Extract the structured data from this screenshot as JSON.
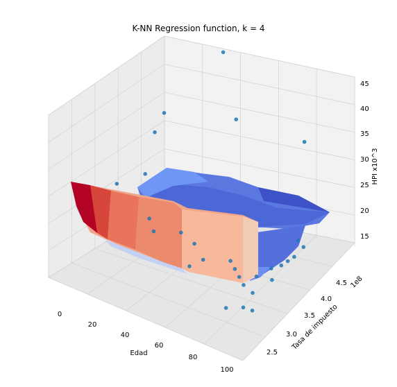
{
  "chart_data": {
    "type": "scatter",
    "title": "K-NN Regression function, k = 4",
    "xlabel": "Edad",
    "ylabel": "Tasa de impuesto",
    "zlabel": "HPI x10^3",
    "y_offset_label": "1e8",
    "xlim": [
      0,
      100
    ],
    "ylim": [
      2.3,
      4.7
    ],
    "zlim": [
      11,
      46
    ],
    "x_ticks": [
      "0",
      "20",
      "40",
      "60",
      "80",
      "100"
    ],
    "y_ticks": [
      "2.5",
      "3.0",
      "3.5",
      "4.0",
      "4.5"
    ],
    "z_ticks": [
      "15",
      "20",
      "25",
      "30",
      "35",
      "40",
      "45"
    ],
    "grid": true,
    "points": [
      {
        "x": 40,
        "y": 4.5,
        "z": 41
      },
      {
        "x": 15,
        "y": 4.2,
        "z": 28
      },
      {
        "x": 15,
        "y": 4.0,
        "z": 26
      },
      {
        "x": 42,
        "y": 4.7,
        "z": 25
      },
      {
        "x": 85,
        "y": 4.5,
        "z": 28
      },
      {
        "x": 12,
        "y": 3.3,
        "z": 22
      },
      {
        "x": 20,
        "y": 3.6,
        "z": 22
      },
      {
        "x": 30,
        "y": 3.3,
        "z": 17
      },
      {
        "x": 35,
        "y": 3.2,
        "z": 16
      },
      {
        "x": 45,
        "y": 3.4,
        "z": 15
      },
      {
        "x": 55,
        "y": 3.3,
        "z": 15
      },
      {
        "x": 60,
        "y": 3.0,
        "z": 14
      },
      {
        "x": 65,
        "y": 3.1,
        "z": 15
      },
      {
        "x": 75,
        "y": 3.3,
        "z": 14
      },
      {
        "x": 80,
        "y": 3.2,
        "z": 14
      },
      {
        "x": 85,
        "y": 3.1,
        "z": 14
      },
      {
        "x": 90,
        "y": 3.0,
        "z": 14
      },
      {
        "x": 92,
        "y": 3.2,
        "z": 14
      },
      {
        "x": 95,
        "y": 3.4,
        "z": 14
      },
      {
        "x": 95,
        "y": 3.0,
        "z": 13
      },
      {
        "x": 98,
        "y": 3.5,
        "z": 14
      },
      {
        "x": 99,
        "y": 3.6,
        "z": 14
      },
      {
        "x": 100,
        "y": 3.7,
        "z": 14
      },
      {
        "x": 100,
        "y": 3.9,
        "z": 14
      },
      {
        "x": 97,
        "y": 3.9,
        "z": 15
      },
      {
        "x": 98,
        "y": 3.3,
        "z": 13
      },
      {
        "x": 95,
        "y": 2.8,
        "z": 12
      },
      {
        "x": 100,
        "y": 2.8,
        "z": 12
      },
      {
        "x": 88,
        "y": 2.7,
        "z": 12
      }
    ],
    "surface_colormap": [
      "#3b4cc0",
      "#6f92f3",
      "#aac7fd",
      "#dddcdc",
      "#f7b89c",
      "#e7745b",
      "#b40426"
    ]
  }
}
